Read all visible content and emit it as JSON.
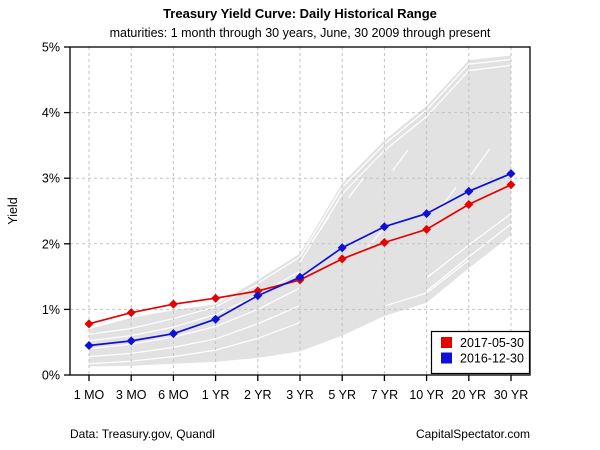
{
  "footer": {
    "left": "Data: Treasury.gov, Quandl",
    "right": "CapitalSpectator.com"
  },
  "chart_data": {
    "type": "line",
    "title": "Treasury Yield Curve: Daily Historical Range",
    "subtitle": "maturities: 1 month through 30 years, June, 30 2009 through present",
    "ylabel": "Yield",
    "xlabel": "",
    "categories": [
      "1 MO",
      "3 MO",
      "6 MO",
      "1 YR",
      "2 YR",
      "3 YR",
      "5 YR",
      "7 YR",
      "10 YR",
      "20 YR",
      "30 YR"
    ],
    "ytick_labels": [
      "0%",
      "1%",
      "2%",
      "3%",
      "4%",
      "5%"
    ],
    "ylim": [
      0,
      5
    ],
    "grid": true,
    "legend_position": "bottom-right",
    "colors": {
      "band": "#e2e2e2",
      "grid": "#c2c2c2",
      "axis": "#000000",
      "streak": "#ffffff"
    },
    "band": {
      "name": "daily-historical-range",
      "top": [
        0.7,
        0.87,
        0.99,
        1.08,
        1.45,
        1.85,
        2.92,
        3.58,
        4.1,
        4.8,
        4.87
      ],
      "bottom": [
        0.13,
        0.14,
        0.17,
        0.2,
        0.26,
        0.36,
        0.6,
        0.9,
        1.1,
        1.63,
        2.13
      ]
    },
    "streaks": [
      [
        [
          0,
          0.17
        ],
        [
          1,
          0.21
        ],
        [
          2,
          0.28
        ],
        [
          3,
          0.38
        ],
        [
          4,
          0.56
        ],
        [
          5,
          0.8
        ]
      ],
      [
        [
          0,
          0.28
        ],
        [
          1,
          0.33
        ],
        [
          2,
          0.42
        ],
        [
          3,
          0.55
        ],
        [
          4,
          0.78
        ],
        [
          5,
          1.06
        ]
      ],
      [
        [
          0,
          0.4
        ],
        [
          1,
          0.47
        ],
        [
          2,
          0.58
        ],
        [
          3,
          0.74
        ],
        [
          4,
          1.0
        ],
        [
          5,
          1.33
        ]
      ],
      [
        [
          0,
          0.52
        ],
        [
          1,
          0.6
        ],
        [
          2,
          0.73
        ],
        [
          3,
          0.92
        ],
        [
          4,
          1.22
        ],
        [
          5,
          1.58
        ]
      ],
      [
        [
          0,
          0.62
        ],
        [
          1,
          0.71
        ],
        [
          2,
          0.86
        ],
        [
          3,
          1.04
        ],
        [
          4,
          1.38
        ]
      ],
      [
        [
          4,
          1.4
        ],
        [
          5,
          1.8
        ],
        [
          6,
          2.86
        ],
        [
          7,
          3.52
        ],
        [
          8,
          4.04
        ],
        [
          9,
          4.74
        ],
        [
          10,
          4.81
        ]
      ],
      [
        [
          5,
          1.72
        ],
        [
          6,
          2.76
        ],
        [
          7,
          3.42
        ],
        [
          8,
          3.94
        ],
        [
          9,
          4.64
        ],
        [
          10,
          4.72
        ]
      ],
      [
        [
          5.3,
          2.05
        ],
        [
          5.7,
          2.42
        ]
      ],
      [
        [
          6.15,
          2.7
        ],
        [
          6.5,
          3.0
        ]
      ],
      [
        [
          7.2,
          3.12
        ],
        [
          7.55,
          3.42
        ]
      ],
      [
        [
          6.6,
          1.95
        ],
        [
          6.95,
          2.2
        ]
      ],
      [
        [
          8.3,
          2.52
        ],
        [
          8.7,
          2.86
        ]
      ],
      [
        [
          9.05,
          3.05
        ],
        [
          9.5,
          3.45
        ]
      ],
      [
        [
          8,
          1.28
        ],
        [
          9,
          1.8
        ],
        [
          10,
          2.3
        ]
      ],
      [
        [
          8,
          1.48
        ],
        [
          9,
          1.98
        ],
        [
          10,
          2.46
        ]
      ],
      [
        [
          7,
          1.05
        ],
        [
          8,
          1.25
        ],
        [
          9,
          1.75
        ]
      ]
    ],
    "series": [
      {
        "name": "2017-05-30",
        "color": "#e60000",
        "values": [
          0.78,
          0.95,
          1.08,
          1.17,
          1.28,
          1.45,
          1.77,
          2.02,
          2.22,
          2.6,
          2.9
        ]
      },
      {
        "name": "2016-12-30",
        "color": "#0f0fd6",
        "values": [
          0.45,
          0.52,
          0.63,
          0.85,
          1.21,
          1.49,
          1.94,
          2.26,
          2.46,
          2.8,
          3.07
        ]
      }
    ]
  }
}
